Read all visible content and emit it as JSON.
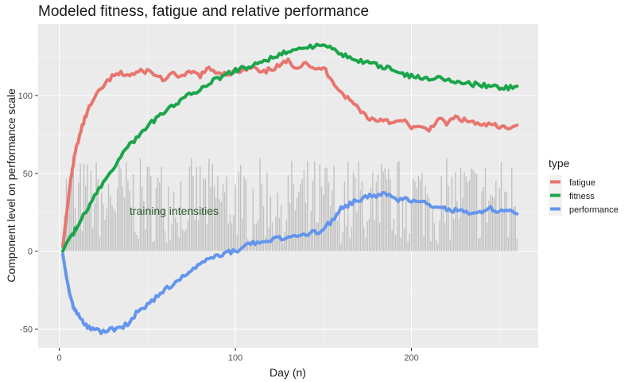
{
  "chart_data": {
    "type": "line",
    "title": "Modeled fitness, fatigue and relative performance",
    "xlabel": "Day (n)",
    "ylabel": "Component level on performance scale",
    "xlim": [
      -12,
      272
    ],
    "ylim": [
      -62,
      146
    ],
    "x_ticks": [
      0,
      100,
      200
    ],
    "y_ticks": [
      -50,
      0,
      50,
      100
    ],
    "grid": true,
    "legend": {
      "title": "type",
      "placement": "right"
    },
    "annotation": {
      "text": "training intensities",
      "x": 38,
      "y": 23
    },
    "series": [
      {
        "name": "fatigue",
        "color": "#e8756e",
        "x": [
          2,
          4,
          6,
          8,
          10,
          13,
          16,
          20,
          25,
          30,
          35,
          40,
          45,
          50,
          55,
          60,
          65,
          70,
          75,
          80,
          85,
          90,
          95,
          100,
          105,
          110,
          115,
          120,
          125,
          130,
          135,
          140,
          145,
          150,
          155,
          160,
          165,
          170,
          175,
          180,
          185,
          190,
          195,
          200,
          205,
          210,
          215,
          220,
          225,
          230,
          235,
          240,
          245,
          250,
          255,
          260
        ],
        "values": [
          3,
          22,
          42,
          57,
          68,
          80,
          90,
          98,
          106,
          112,
          114,
          113,
          115,
          116,
          113,
          110,
          114,
          112,
          115,
          113,
          117,
          115,
          114,
          115,
          116,
          118,
          114,
          117,
          119,
          122,
          118,
          122,
          116,
          118,
          110,
          102,
          97,
          92,
          86,
          84,
          85,
          82,
          84,
          80,
          79,
          78,
          85,
          82,
          86,
          84,
          83,
          80,
          82,
          79,
          80,
          81
        ]
      },
      {
        "name": "fitness",
        "color": "#1aa54a",
        "x": [
          2,
          4,
          6,
          8,
          10,
          15,
          20,
          25,
          30,
          35,
          40,
          45,
          50,
          55,
          60,
          65,
          70,
          75,
          80,
          85,
          90,
          95,
          100,
          105,
          110,
          115,
          120,
          125,
          130,
          135,
          140,
          145,
          150,
          155,
          160,
          165,
          170,
          175,
          180,
          185,
          190,
          195,
          200,
          205,
          210,
          215,
          220,
          225,
          230,
          235,
          240,
          245,
          250,
          255,
          260
        ],
        "values": [
          0,
          5,
          9,
          12,
          15,
          25,
          35,
          44,
          53,
          61,
          68,
          74,
          80,
          85,
          90,
          94,
          98,
          101,
          104,
          108,
          111,
          114,
          116,
          118,
          120,
          122,
          124,
          126,
          128,
          130,
          131,
          132,
          133,
          130,
          127,
          124,
          122,
          121,
          120,
          118,
          116,
          114,
          112,
          112,
          111,
          111,
          110,
          109,
          108,
          107,
          107,
          106,
          105,
          105,
          106
        ]
      },
      {
        "name": "performance",
        "color": "#6495ed",
        "x": [
          2,
          4,
          6,
          8,
          10,
          13,
          16,
          20,
          25,
          30,
          35,
          40,
          45,
          50,
          55,
          60,
          65,
          70,
          75,
          80,
          85,
          90,
          95,
          100,
          105,
          110,
          115,
          120,
          125,
          130,
          135,
          140,
          145,
          150,
          155,
          160,
          165,
          170,
          175,
          180,
          185,
          190,
          195,
          200,
          205,
          210,
          215,
          220,
          225,
          230,
          235,
          240,
          245,
          250,
          255,
          260
        ],
        "values": [
          -2,
          -16,
          -28,
          -35,
          -40,
          -45,
          -49,
          -51,
          -52,
          -50,
          -50,
          -45,
          -38,
          -35,
          -30,
          -25,
          -21,
          -17,
          -12,
          -8,
          -5,
          -3,
          -1,
          0,
          3,
          5,
          5,
          7,
          9,
          8,
          10,
          11,
          12,
          14,
          20,
          27,
          30,
          33,
          35,
          36,
          37,
          34,
          33,
          33,
          32,
          30,
          28,
          27,
          26,
          26,
          25,
          26,
          27,
          25,
          26,
          24
        ]
      }
    ],
    "bars": {
      "name": "training intensities",
      "color": "#bdbdbd",
      "x_start": 2,
      "x_end": 260,
      "approx_range": [
        5,
        60
      ]
    }
  }
}
